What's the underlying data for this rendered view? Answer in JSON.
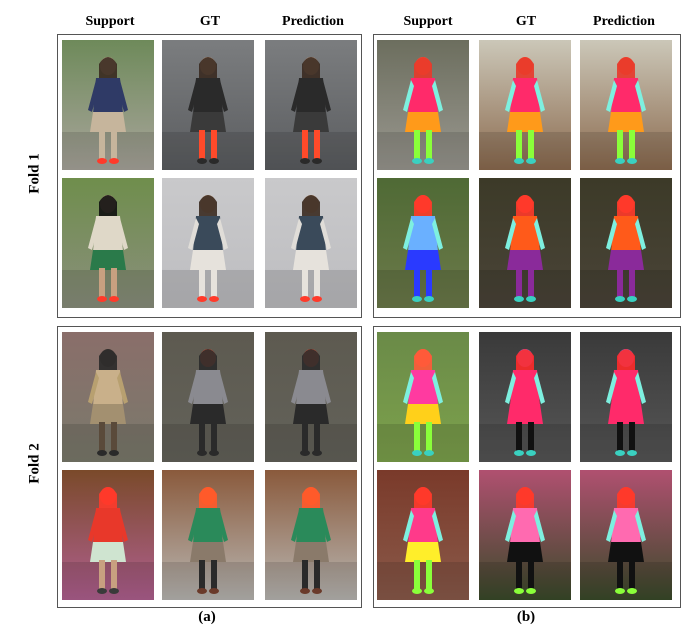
{
  "column_headers": {
    "a": [
      "Support",
      "GT",
      "Prediction"
    ],
    "b": [
      "Support",
      "GT",
      "Prediction"
    ]
  },
  "row_labels": [
    "Fold 1",
    "Fold 2"
  ],
  "panel_captions": [
    "(a)",
    "(b)"
  ]
}
